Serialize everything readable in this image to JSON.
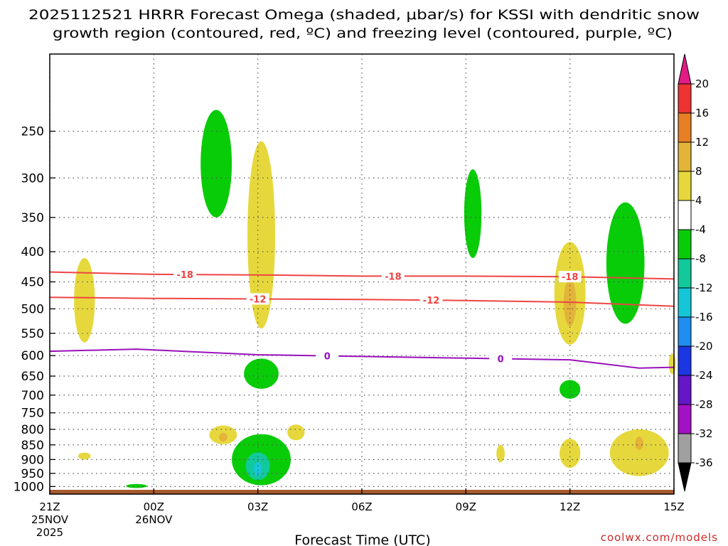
{
  "chart_data": {
    "type": "heatmap",
    "title_line1": "2025112521 HRRR Forecast Omega (shaded, μbar/s) for KSSI with dendritic snow",
    "title_line2": "growth region (contoured, red, ºC) and freezing level (contoured, purple, ºC)",
    "xlabel": "Forecast Time (UTC)",
    "credit": "coolwx.com/models",
    "x_range_hours": [
      0,
      18
    ],
    "y_range_hpa": [
      1030,
      185
    ],
    "x_ticks": [
      {
        "hour": 0,
        "label": "21Z",
        "sub1": "25NOV",
        "sub2": "2025"
      },
      {
        "hour": 3,
        "label": "00Z",
        "sub1": "26NOV",
        "sub2": ""
      },
      {
        "hour": 6,
        "label": "03Z",
        "sub1": "",
        "sub2": ""
      },
      {
        "hour": 9,
        "label": "06Z",
        "sub1": "",
        "sub2": ""
      },
      {
        "hour": 12,
        "label": "09Z",
        "sub1": "",
        "sub2": ""
      },
      {
        "hour": 15,
        "label": "12Z",
        "sub1": "",
        "sub2": ""
      },
      {
        "hour": 18,
        "label": "15Z",
        "sub1": "",
        "sub2": ""
      }
    ],
    "y_ticks": [
      250,
      300,
      350,
      400,
      450,
      500,
      550,
      600,
      650,
      700,
      750,
      800,
      850,
      900,
      950,
      1000
    ],
    "colorbar": {
      "bins": [
        {
          "from": 16,
          "to": 20,
          "color": "#ee3333"
        },
        {
          "from": 12,
          "to": 16,
          "color": "#e87f24"
        },
        {
          "from": 8,
          "to": 12,
          "color": "#e3b33a"
        },
        {
          "from": 4,
          "to": 8,
          "color": "#e6d83c"
        },
        {
          "from": -4,
          "to": 4,
          "color": "#ffffff"
        },
        {
          "from": -8,
          "to": -4,
          "color": "#09cc09"
        },
        {
          "from": -12,
          "to": -8,
          "color": "#12c99b"
        },
        {
          "from": -16,
          "to": -12,
          "color": "#15c6d8"
        },
        {
          "from": -20,
          "to": -16,
          "color": "#1e8ff1"
        },
        {
          "from": -24,
          "to": -20,
          "color": "#1b36e3"
        },
        {
          "from": -28,
          "to": -24,
          "color": "#6416c8"
        },
        {
          "from": -32,
          "to": -28,
          "color": "#a311c4"
        },
        {
          "from": -36,
          "to": -32,
          "color": "#a0a0a0"
        }
      ],
      "labels": [
        "20",
        "16",
        "12",
        "8",
        "4",
        "-4",
        "-8",
        "-12",
        "-16",
        "-20",
        "-24",
        "-28",
        "-32",
        "-36"
      ],
      "top_arrow_color": "#e21b86",
      "bottom_arrow_color": "#000000"
    },
    "contours": [
      {
        "name": "isotherm-minus-18",
        "color": "#ee4444",
        "label": "-18",
        "hours": [
          0,
          3,
          6,
          9,
          12,
          15,
          18
        ],
        "hpa": [
          433,
          437,
          438,
          440,
          440,
          441,
          445
        ],
        "label_hours": [
          3.9,
          9.9,
          15.0
        ]
      },
      {
        "name": "isotherm-minus-12",
        "color": "#ee4444",
        "label": "-12",
        "hours": [
          0,
          3,
          6,
          9,
          12,
          15,
          18
        ],
        "hpa": [
          478,
          480,
          481,
          482,
          484,
          487,
          495
        ],
        "label_hours": [
          6.0,
          11.0
        ]
      },
      {
        "name": "freezing-level",
        "color": "#9911bb",
        "label": "0",
        "hours": [
          0,
          2.5,
          6,
          9,
          12,
          15,
          17,
          18
        ],
        "hpa": [
          590,
          585,
          598,
          602,
          606,
          610,
          630,
          628
        ],
        "label_hours": [
          8.0,
          13.0
        ]
      }
    ],
    "regions": [
      {
        "name": "omega-region-1",
        "bin": "-8 to -4",
        "color": "#09cc09",
        "center": [
          4.8,
          290
        ],
        "radii": [
          0.45,
          60
        ]
      },
      {
        "name": "omega-region-2",
        "bin": "4 to 8",
        "color": "#e6d83c",
        "center": [
          6.1,
          400
        ],
        "radii": [
          0.4,
          140
        ]
      },
      {
        "name": "omega-region-3",
        "bin": "4 to 8",
        "color": "#e6d83c",
        "center": [
          1.0,
          490
        ],
        "radii": [
          0.3,
          80
        ]
      },
      {
        "name": "omega-region-4",
        "bin": "-8 to -4",
        "color": "#09cc09",
        "center": [
          12.2,
          350
        ],
        "radii": [
          0.25,
          60
        ]
      },
      {
        "name": "omega-region-5",
        "bin": "4 to 8",
        "color": "#e6d83c",
        "center": [
          15.0,
          480
        ],
        "radii": [
          0.45,
          95
        ]
      },
      {
        "name": "omega-region-6",
        "bin": "8 to 12",
        "color": "#e3b33a",
        "center": [
          15.0,
          490
        ],
        "radii": [
          0.18,
          45
        ]
      },
      {
        "name": "omega-region-7",
        "bin": "-8 to -4",
        "color": "#09cc09",
        "center": [
          16.6,
          430
        ],
        "radii": [
          0.55,
          100
        ]
      },
      {
        "name": "omega-region-8",
        "bin": "4 to 8",
        "color": "#e6d83c",
        "center": [
          17.95,
          620
        ],
        "radii": [
          0.1,
          25
        ]
      },
      {
        "name": "omega-region-9",
        "bin": "-8 to -4",
        "color": "#09cc09",
        "center": [
          6.1,
          645
        ],
        "radii": [
          0.5,
          38
        ]
      },
      {
        "name": "omega-region-10",
        "bin": "-8 to -4",
        "color": "#09cc09",
        "center": [
          15.0,
          685
        ],
        "radii": [
          0.3,
          25
        ]
      },
      {
        "name": "omega-region-11",
        "bin": "4 to 8",
        "color": "#e6d83c",
        "center": [
          5.0,
          818
        ],
        "radii": [
          0.4,
          30
        ]
      },
      {
        "name": "omega-region-12",
        "bin": "8 to 12",
        "color": "#e3b33a",
        "center": [
          5.0,
          825
        ],
        "radii": [
          0.12,
          14
        ]
      },
      {
        "name": "omega-region-13",
        "bin": "4 to 8",
        "color": "#e6d83c",
        "center": [
          7.1,
          810
        ],
        "radii": [
          0.25,
          25
        ]
      },
      {
        "name": "omega-region-14",
        "bin": "-8 to -4",
        "color": "#09cc09",
        "center": [
          6.1,
          905
        ],
        "radii": [
          0.85,
          90
        ]
      },
      {
        "name": "omega-region-15",
        "bin": "-12 to -8",
        "color": "#12c99b",
        "center": [
          6.0,
          925
        ],
        "radii": [
          0.35,
          50
        ]
      },
      {
        "name": "omega-region-16",
        "bin": "-16 to -12",
        "color": "#15c6d8",
        "center": [
          6.0,
          935
        ],
        "radii": [
          0.12,
          25
        ]
      },
      {
        "name": "omega-region-17",
        "bin": "4 to 8",
        "color": "#e6d83c",
        "center": [
          1.0,
          888
        ],
        "radii": [
          0.18,
          12
        ]
      },
      {
        "name": "omega-region-18",
        "bin": "-8 to -4",
        "color": "#09cc09",
        "center": [
          2.5,
          998
        ],
        "radii": [
          0.3,
          8
        ]
      },
      {
        "name": "omega-region-19",
        "bin": "4 to 8",
        "color": "#e6d83c",
        "center": [
          13.0,
          880
        ],
        "radii": [
          0.12,
          30
        ]
      },
      {
        "name": "omega-region-20",
        "bin": "4 to 8",
        "color": "#e6d83c",
        "center": [
          15.0,
          880
        ],
        "radii": [
          0.3,
          50
        ]
      },
      {
        "name": "omega-region-21",
        "bin": "4 to 8",
        "color": "#e6d83c",
        "center": [
          17.0,
          880
        ],
        "radii": [
          0.85,
          80
        ]
      },
      {
        "name": "omega-region-22",
        "bin": "8 to 12",
        "color": "#e3b33a",
        "center": [
          17.0,
          845
        ],
        "radii": [
          0.12,
          22
        ]
      }
    ],
    "surface": {
      "color": "#a65a2d",
      "top_hpa": 1013
    }
  }
}
